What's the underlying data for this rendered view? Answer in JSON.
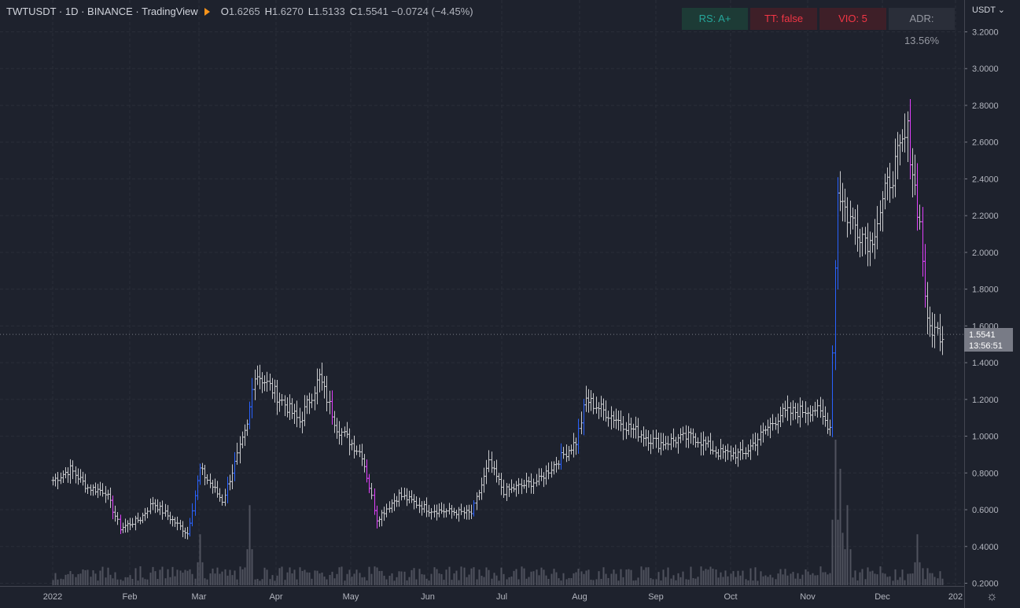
{
  "legend": {
    "symbol": "TWTUSDT · 1D · BINANCE · TradingView",
    "o_label": "O",
    "o_value": "1.6265",
    "h_label": "H",
    "h_value": "1.6270",
    "l_label": "L",
    "l_value": "1.5133",
    "c_label": "C",
    "c_value": "1.5541",
    "change": "−0.0724 (−4.45%)"
  },
  "badges": [
    {
      "text": "RS: A+",
      "bg": "#1d3b36",
      "color": "#26a69a"
    },
    {
      "text": "TT: false",
      "bg": "#3e1f28",
      "color": "#f23645"
    },
    {
      "text": "VIO: 5",
      "bg": "#3e1f28",
      "color": "#f23645"
    },
    {
      "text": "ADR: 13.56%",
      "bg": "#2a2e39",
      "color": "#9598a1"
    }
  ],
  "currency_label": "USDT ⌄",
  "last_price": {
    "value": "1.5541",
    "countdown": "13:56:51"
  },
  "colors": {
    "bar_default": "#c8c9cc",
    "bar_blue": "#2962ff",
    "bar_pink": "#e040fb",
    "bar_green": "#26a69a",
    "volume": "#50535e",
    "grid": "#2a2e39"
  },
  "chart_data": {
    "type": "ohlc-bar",
    "title": "TWTUSDT · 1D · BINANCE · TradingView",
    "y_axis": {
      "ticks": [
        "3.2000",
        "3.0000",
        "2.8000",
        "2.6000",
        "2.4000",
        "2.2000",
        "2.0000",
        "1.8000",
        "1.6000",
        "1.4000",
        "1.2000",
        "1.0000",
        "0.8000",
        "0.6000",
        "0.4000",
        "0.2000"
      ],
      "min": 0.2,
      "max": 3.2
    },
    "x_axis": {
      "ticks": [
        "2022",
        "Feb",
        "Mar",
        "Apr",
        "May",
        "Jun",
        "Jul",
        "Aug",
        "Sep",
        "Oct",
        "Nov",
        "Dec",
        "202"
      ]
    },
    "keypoints": [
      {
        "date": "2022-01-01",
        "close": 0.76
      },
      {
        "date": "2022-01-08",
        "close": 0.82
      },
      {
        "date": "2022-01-15",
        "close": 0.72
      },
      {
        "date": "2022-01-22",
        "close": 0.7
      },
      {
        "date": "2022-01-28",
        "close": 0.5
      },
      {
        "date": "2022-02-05",
        "close": 0.55
      },
      {
        "date": "2022-02-10",
        "close": 0.64
      },
      {
        "date": "2022-02-24",
        "close": 0.47
      },
      {
        "date": "2022-03-01",
        "close": 0.82
      },
      {
        "date": "2022-03-10",
        "close": 0.65
      },
      {
        "date": "2022-03-20",
        "close": 1.05
      },
      {
        "date": "2022-03-23",
        "close": 1.35
      },
      {
        "date": "2022-03-27",
        "close": 1.3
      },
      {
        "date": "2022-04-10",
        "close": 1.08
      },
      {
        "date": "2022-04-18",
        "close": 1.32
      },
      {
        "date": "2022-04-25",
        "close": 1.05
      },
      {
        "date": "2022-05-05",
        "close": 0.9
      },
      {
        "date": "2022-05-11",
        "close": 0.55
      },
      {
        "date": "2022-05-20",
        "close": 0.68
      },
      {
        "date": "2022-06-01",
        "close": 0.6
      },
      {
        "date": "2022-06-18",
        "close": 0.58
      },
      {
        "date": "2022-06-25",
        "close": 0.85
      },
      {
        "date": "2022-07-01",
        "close": 0.7
      },
      {
        "date": "2022-07-15",
        "close": 0.76
      },
      {
        "date": "2022-07-30",
        "close": 0.97
      },
      {
        "date": "2022-08-03",
        "close": 1.2
      },
      {
        "date": "2022-08-20",
        "close": 1.05
      },
      {
        "date": "2022-09-01",
        "close": 0.96
      },
      {
        "date": "2022-09-15",
        "close": 1.0
      },
      {
        "date": "2022-09-25",
        "close": 0.91
      },
      {
        "date": "2022-10-05",
        "close": 0.9
      },
      {
        "date": "2022-10-20",
        "close": 1.12
      },
      {
        "date": "2022-11-03",
        "close": 1.15
      },
      {
        "date": "2022-11-09",
        "close": 1.05
      },
      {
        "date": "2022-11-12",
        "close": 2.35
      },
      {
        "date": "2022-11-16",
        "close": 2.2
      },
      {
        "date": "2022-11-25",
        "close": 2.05
      },
      {
        "date": "2022-12-03",
        "close": 2.4
      },
      {
        "date": "2022-12-10",
        "close": 2.65
      },
      {
        "date": "2022-12-15",
        "close": 2.15
      },
      {
        "date": "2022-12-18",
        "close": 1.6
      },
      {
        "date": "2022-12-24",
        "close": 1.55
      }
    ],
    "volume_spikes": [
      {
        "date": "2022-03-01",
        "relative": 0.35
      },
      {
        "date": "2022-03-21",
        "relative": 0.55
      },
      {
        "date": "2022-11-11",
        "relative": 1.0
      },
      {
        "date": "2022-11-13",
        "relative": 0.8
      },
      {
        "date": "2022-11-16",
        "relative": 0.55
      },
      {
        "date": "2022-12-14",
        "relative": 0.35
      }
    ],
    "grid": true
  }
}
